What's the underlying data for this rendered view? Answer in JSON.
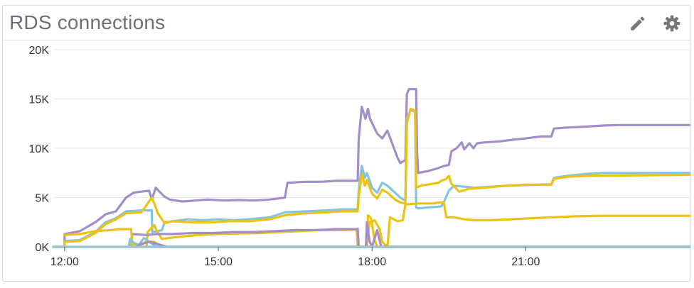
{
  "widget": {
    "title": "RDS connections",
    "actions": [
      {
        "name": "edit",
        "icon": "pencil-icon"
      },
      {
        "name": "settings",
        "icon": "gear-icon"
      }
    ]
  },
  "colors": {
    "purple": "#a38fc8",
    "blue": "#84c4df",
    "yellow": "#eec30f",
    "axis": "#333333",
    "grid": "#e6e6e6",
    "icon": "#777777"
  },
  "chart_data": {
    "type": "line",
    "title": "",
    "xlabel": "",
    "ylabel": "",
    "xlim": [
      11.78,
      24.2
    ],
    "ylim": [
      0,
      20000
    ],
    "y_ticks": [
      {
        "value": 0,
        "label": "0K"
      },
      {
        "value": 5000,
        "label": "5K"
      },
      {
        "value": 10000,
        "label": "10K"
      },
      {
        "value": 15000,
        "label": "15K"
      },
      {
        "value": 20000,
        "label": "20K"
      }
    ],
    "x_ticks": [
      {
        "value": 12,
        "label": "12:00"
      },
      {
        "value": 15,
        "label": "15:00"
      },
      {
        "value": 18,
        "label": "18:00"
      },
      {
        "value": 21,
        "label": "21:00"
      }
    ],
    "grid": true,
    "legend": "none",
    "series": [
      {
        "color": "purple",
        "points": [
          [
            11.78,
            0
          ],
          [
            12.0,
            0
          ],
          [
            12.0,
            1300
          ],
          [
            12.3,
            1600
          ],
          [
            12.6,
            2500
          ],
          [
            12.8,
            3300
          ],
          [
            13.0,
            3600
          ],
          [
            13.2,
            5000
          ],
          [
            13.35,
            5500
          ],
          [
            13.5,
            5600
          ],
          [
            13.65,
            5700
          ],
          [
            13.7,
            4800
          ],
          [
            13.78,
            6000
          ],
          [
            13.85,
            5600
          ],
          [
            13.95,
            5100
          ],
          [
            14.05,
            4800
          ],
          [
            14.3,
            4600
          ],
          [
            14.55,
            4700
          ],
          [
            14.8,
            4800
          ],
          [
            15.1,
            4700
          ],
          [
            15.4,
            4750
          ],
          [
            15.7,
            4700
          ],
          [
            16.0,
            4800
          ],
          [
            16.3,
            5000
          ],
          [
            16.35,
            6500
          ],
          [
            16.7,
            6600
          ],
          [
            17.0,
            6600
          ],
          [
            17.3,
            6700
          ],
          [
            17.72,
            6700
          ],
          [
            17.74,
            11000
          ],
          [
            17.8,
            14200
          ],
          [
            17.87,
            13000
          ],
          [
            17.92,
            14000
          ],
          [
            17.96,
            13000
          ],
          [
            18.1,
            11500
          ],
          [
            18.2,
            11000
          ],
          [
            18.3,
            11800
          ],
          [
            18.5,
            9000
          ],
          [
            18.55,
            8500
          ],
          [
            18.65,
            8800
          ],
          [
            18.68,
            15500
          ],
          [
            18.72,
            16000
          ],
          [
            18.86,
            16000
          ],
          [
            18.88,
            9500
          ],
          [
            18.9,
            7500
          ],
          [
            19.1,
            7700
          ],
          [
            19.3,
            8000
          ],
          [
            19.4,
            8200
          ],
          [
            19.5,
            8300
          ],
          [
            19.55,
            9700
          ],
          [
            19.65,
            10000
          ],
          [
            19.75,
            10600
          ],
          [
            19.8,
            9900
          ],
          [
            19.9,
            10500
          ],
          [
            19.98,
            10000
          ],
          [
            20.05,
            10500
          ],
          [
            20.2,
            10600
          ],
          [
            20.5,
            10700
          ],
          [
            20.8,
            10900
          ],
          [
            21.0,
            11000
          ],
          [
            21.3,
            11200
          ],
          [
            21.5,
            11200
          ],
          [
            21.55,
            12000
          ],
          [
            21.8,
            12100
          ],
          [
            22.2,
            12200
          ],
          [
            22.5,
            12300
          ],
          [
            22.8,
            12350
          ],
          [
            24.2,
            12350
          ]
        ]
      },
      {
        "color": "blue",
        "points": [
          [
            11.78,
            0
          ],
          [
            12.0,
            0
          ],
          [
            12.0,
            600
          ],
          [
            12.3,
            700
          ],
          [
            12.6,
            1500
          ],
          [
            12.8,
            2500
          ],
          [
            13.0,
            2900
          ],
          [
            13.2,
            3600
          ],
          [
            13.5,
            3700
          ],
          [
            13.7,
            3700
          ],
          [
            13.71,
            1500
          ],
          [
            13.82,
            1600
          ],
          [
            13.9,
            1700
          ],
          [
            13.95,
            2500
          ],
          [
            14.1,
            2600
          ],
          [
            14.4,
            2800
          ],
          [
            14.7,
            2700
          ],
          [
            15.0,
            2800
          ],
          [
            15.3,
            2700
          ],
          [
            15.6,
            2800
          ],
          [
            16.0,
            3000
          ],
          [
            16.3,
            3500
          ],
          [
            16.7,
            3600
          ],
          [
            17.1,
            3700
          ],
          [
            17.4,
            3800
          ],
          [
            17.7,
            3800
          ],
          [
            17.72,
            3800
          ],
          [
            17.74,
            5800
          ],
          [
            17.8,
            8200
          ],
          [
            17.86,
            7000
          ],
          [
            17.9,
            7500
          ],
          [
            18.0,
            6000
          ],
          [
            18.1,
            5500
          ],
          [
            18.2,
            6500
          ],
          [
            18.3,
            6200
          ],
          [
            18.45,
            5500
          ],
          [
            18.55,
            5000
          ],
          [
            18.65,
            4700
          ],
          [
            18.68,
            13000
          ],
          [
            18.75,
            13900
          ],
          [
            18.84,
            13700
          ],
          [
            18.86,
            4000
          ],
          [
            18.9,
            3900
          ],
          [
            19.1,
            4000
          ],
          [
            19.35,
            4100
          ],
          [
            19.4,
            4500
          ],
          [
            19.5,
            5700
          ],
          [
            19.6,
            6200
          ],
          [
            19.8,
            6100
          ],
          [
            20.0,
            6000
          ],
          [
            20.3,
            6100
          ],
          [
            20.7,
            6200
          ],
          [
            21.2,
            6300
          ],
          [
            21.5,
            6350
          ],
          [
            21.55,
            7000
          ],
          [
            21.8,
            7200
          ],
          [
            22.2,
            7400
          ],
          [
            22.5,
            7500
          ],
          [
            24.2,
            7500
          ]
        ]
      },
      {
        "color": "yellow",
        "points": [
          [
            11.78,
            0
          ],
          [
            12.0,
            0
          ],
          [
            12.0,
            500
          ],
          [
            12.3,
            600
          ],
          [
            12.6,
            1400
          ],
          [
            12.8,
            2300
          ],
          [
            13.0,
            2800
          ],
          [
            13.2,
            3400
          ],
          [
            13.5,
            3500
          ],
          [
            13.7,
            5000
          ],
          [
            13.75,
            4400
          ],
          [
            13.82,
            3400
          ],
          [
            13.95,
            2400
          ],
          [
            14.1,
            2600
          ],
          [
            14.5,
            2500
          ],
          [
            14.9,
            2500
          ],
          [
            15.2,
            2600
          ],
          [
            15.6,
            2600
          ],
          [
            16.0,
            2800
          ],
          [
            16.3,
            3200
          ],
          [
            16.7,
            3400
          ],
          [
            17.1,
            3500
          ],
          [
            17.4,
            3600
          ],
          [
            17.7,
            3600
          ],
          [
            17.72,
            3600
          ],
          [
            17.74,
            5000
          ],
          [
            17.8,
            7400
          ],
          [
            17.86,
            6200
          ],
          [
            17.9,
            6800
          ],
          [
            18.0,
            5400
          ],
          [
            18.1,
            4900
          ],
          [
            18.2,
            5800
          ],
          [
            18.3,
            5500
          ],
          [
            18.45,
            4800
          ],
          [
            18.55,
            4500
          ],
          [
            18.65,
            4400
          ],
          [
            18.68,
            12500
          ],
          [
            18.75,
            14000
          ],
          [
            18.84,
            13800
          ],
          [
            18.86,
            6000
          ],
          [
            18.95,
            6200
          ],
          [
            19.3,
            6500
          ],
          [
            19.35,
            6700
          ],
          [
            19.45,
            6900
          ],
          [
            19.5,
            7200
          ],
          [
            19.55,
            6400
          ],
          [
            19.7,
            5600
          ],
          [
            19.9,
            5900
          ],
          [
            20.2,
            6000
          ],
          [
            20.6,
            6200
          ],
          [
            21.0,
            6300
          ],
          [
            21.5,
            6300
          ],
          [
            21.55,
            6900
          ],
          [
            21.8,
            7100
          ],
          [
            22.2,
            7200
          ],
          [
            24.2,
            7300
          ]
        ]
      },
      {
        "color": "yellow",
        "points": [
          [
            13.6,
            0
          ],
          [
            13.62,
            1500
          ],
          [
            13.75,
            2200
          ],
          [
            13.8,
            1600
          ],
          [
            13.9,
            800
          ],
          [
            14.2,
            1000
          ],
          [
            14.6,
            1200
          ],
          [
            15.0,
            1300
          ],
          [
            15.4,
            1350
          ],
          [
            15.8,
            1400
          ],
          [
            16.2,
            1500
          ],
          [
            16.6,
            1600
          ],
          [
            17.0,
            1700
          ],
          [
            17.4,
            1700
          ],
          [
            17.7,
            1750
          ],
          [
            17.72,
            0
          ],
          [
            17.9,
            0
          ],
          [
            17.95,
            2500
          ],
          [
            18.05,
            2700
          ],
          [
            18.15,
            1800
          ],
          [
            18.2,
            500
          ],
          [
            18.3,
            0
          ],
          [
            18.35,
            3000
          ],
          [
            18.5,
            2600
          ],
          [
            18.6,
            2700
          ],
          [
            18.65,
            4300
          ],
          [
            18.9,
            4400
          ],
          [
            19.2,
            4400
          ],
          [
            19.3,
            4500
          ],
          [
            19.4,
            4500
          ],
          [
            19.45,
            3000
          ],
          [
            19.6,
            3000
          ],
          [
            19.8,
            2800
          ],
          [
            20.0,
            2700
          ],
          [
            20.3,
            2700
          ],
          [
            20.7,
            2800
          ],
          [
            21.1,
            2900
          ],
          [
            21.5,
            3000
          ],
          [
            22.0,
            3100
          ],
          [
            22.5,
            3150
          ],
          [
            24.2,
            3150
          ]
        ]
      },
      {
        "color": "purple",
        "points": [
          [
            13.3,
            0
          ],
          [
            13.32,
            1300
          ],
          [
            13.6,
            1200
          ],
          [
            13.8,
            1300
          ],
          [
            14.1,
            1300
          ],
          [
            14.5,
            1400
          ],
          [
            14.9,
            1400
          ],
          [
            15.3,
            1500
          ],
          [
            15.7,
            1500
          ],
          [
            16.1,
            1600
          ],
          [
            16.5,
            1700
          ],
          [
            16.9,
            1700
          ],
          [
            17.3,
            1800
          ],
          [
            17.7,
            1800
          ],
          [
            17.72,
            1850
          ],
          [
            17.74,
            0
          ],
          [
            24.2,
            0
          ]
        ]
      },
      {
        "color": "yellow",
        "points": [
          [
            12.0,
            1200
          ],
          [
            12.3,
            1300
          ],
          [
            12.6,
            1600
          ],
          [
            12.9,
            1700
          ],
          [
            13.05,
            1800
          ],
          [
            13.3,
            1800
          ],
          [
            13.32,
            0
          ],
          [
            14.0,
            0
          ],
          [
            17.9,
            0
          ],
          [
            17.92,
            3200
          ],
          [
            17.98,
            2900
          ],
          [
            18.05,
            700
          ],
          [
            18.1,
            0
          ],
          [
            24.2,
            0
          ]
        ]
      },
      {
        "color": "yellow",
        "points": [
          [
            13.3,
            300
          ],
          [
            13.5,
            200
          ],
          [
            13.6,
            600
          ],
          [
            13.75,
            500
          ],
          [
            13.9,
            0
          ],
          [
            24.2,
            0
          ]
        ]
      },
      {
        "color": "blue",
        "points": [
          [
            13.25,
            0
          ],
          [
            13.28,
            800
          ],
          [
            13.35,
            400
          ],
          [
            13.45,
            200
          ],
          [
            13.55,
            900
          ],
          [
            13.65,
            500
          ],
          [
            13.8,
            0
          ],
          [
            24.2,
            0
          ]
        ]
      },
      {
        "color": "purple",
        "points": [
          [
            13.4,
            0
          ],
          [
            13.5,
            300
          ],
          [
            13.65,
            500
          ],
          [
            13.8,
            300
          ],
          [
            14.0,
            0
          ],
          [
            17.88,
            0
          ],
          [
            17.9,
            2500
          ],
          [
            17.95,
            600
          ],
          [
            18.0,
            0
          ],
          [
            18.1,
            1700
          ],
          [
            18.18,
            0
          ],
          [
            24.2,
            0
          ]
        ]
      },
      {
        "color": "blue",
        "points": [
          [
            11.78,
            0
          ],
          [
            24.2,
            0
          ]
        ]
      }
    ]
  }
}
